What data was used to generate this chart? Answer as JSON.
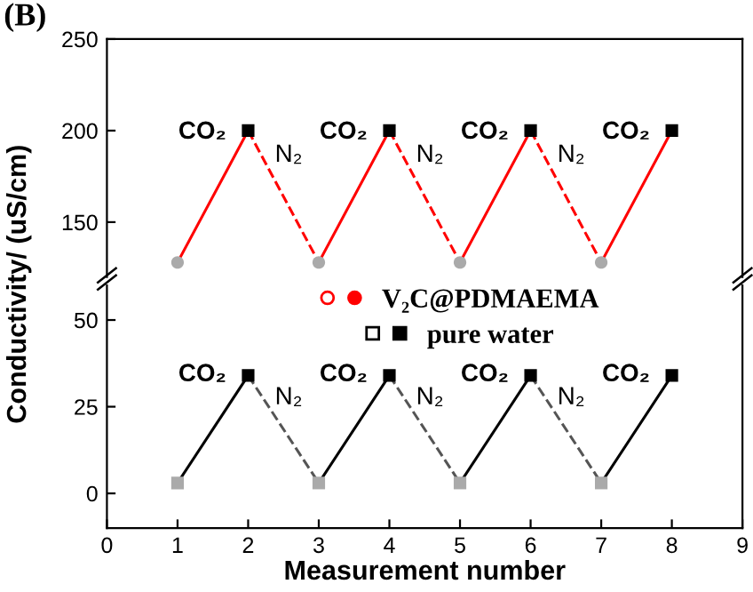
{
  "chart_data": [
    {
      "type": "line",
      "title": "(B)",
      "ylabel": "Conductivity/ (uS/cm)",
      "xlim": [
        0,
        9
      ],
      "ylim": [
        120,
        250
      ],
      "yticks": [
        150,
        200,
        250
      ],
      "tick_labels": "y",
      "legend": "bottom",
      "series": [
        {
          "name": "V₂C@PDMAEMA",
          "color": "#ff0000",
          "line_style": "solid",
          "x": [
            1,
            2
          ],
          "values": [
            128,
            200
          ]
        },
        {
          "color": "#ff0000",
          "line_style": "dashed",
          "x": [
            2,
            3
          ],
          "values": [
            200,
            128
          ]
        },
        {
          "color": "#ff0000",
          "line_style": "solid",
          "x": [
            3,
            4
          ],
          "values": [
            128,
            200
          ]
        },
        {
          "color": "#ff0000",
          "line_style": "dashed",
          "x": [
            4,
            5
          ],
          "values": [
            200,
            128
          ]
        },
        {
          "color": "#ff0000",
          "line_style": "solid",
          "x": [
            5,
            6
          ],
          "values": [
            128,
            200
          ]
        },
        {
          "color": "#ff0000",
          "line_style": "dashed",
          "x": [
            6,
            7
          ],
          "values": [
            200,
            128
          ]
        },
        {
          "color": "#ff0000",
          "line_style": "solid",
          "x": [
            7,
            8
          ],
          "values": [
            128,
            200
          ]
        },
        {
          "type": "scatter",
          "color": "#aaaaaa",
          "marker": "circle",
          "x": [
            1,
            3,
            5,
            7
          ],
          "values": [
            128,
            128,
            128,
            128
          ]
        },
        {
          "type": "scatter",
          "color": "#000000",
          "marker": "square",
          "x": [
            2,
            4,
            6,
            8
          ],
          "values": [
            200,
            200,
            200,
            200
          ]
        }
      ],
      "annotations": [
        {
          "text": "CO₂",
          "x": 1.9,
          "y": 192.8
        },
        {
          "text": "N₂",
          "x": 2.1,
          "y": 192.8
        },
        {
          "text": "CO₂",
          "x": 3.9,
          "y": 192.8
        },
        {
          "text": "N₂",
          "x": 4.1,
          "y": 192.8
        },
        {
          "text": "CO₂",
          "x": 5.9,
          "y": 192.8
        },
        {
          "text": "N₂",
          "x": 6.1,
          "y": 192.8
        },
        {
          "text": "CO₂",
          "x": 7.9,
          "y": 192.8
        }
      ]
    },
    {
      "type": "line",
      "xlabel": "Measurement number",
      "xlim": [
        0,
        9
      ],
      "xticks": [
        0,
        1,
        2,
        3,
        4,
        5,
        6,
        7,
        8,
        9
      ],
      "ylim": [
        -10,
        60
      ],
      "yticks": [
        0,
        25,
        50
      ],
      "legend": "top",
      "series": [
        {
          "name": "pure water",
          "color": "#000000",
          "line_style": "solid",
          "x": [
            1,
            2
          ],
          "values": [
            3,
            34
          ]
        },
        {
          "color": "#555555",
          "line_style": "dashed",
          "x": [
            2,
            3
          ],
          "values": [
            34,
            3
          ]
        },
        {
          "color": "#000000",
          "line_style": "solid",
          "x": [
            3,
            4
          ],
          "values": [
            3,
            34
          ]
        },
        {
          "color": "#555555",
          "line_style": "dashed",
          "x": [
            4,
            5
          ],
          "values": [
            34,
            3
          ]
        },
        {
          "color": "#000000",
          "line_style": "solid",
          "x": [
            5,
            6
          ],
          "values": [
            3,
            34
          ]
        },
        {
          "color": "#555555",
          "line_style": "dashed",
          "x": [
            6,
            7
          ],
          "values": [
            34,
            3
          ]
        },
        {
          "color": "#000000",
          "line_style": "solid",
          "x": [
            7,
            8
          ],
          "values": [
            3,
            34
          ]
        },
        {
          "type": "scatter",
          "color": "#aaaaaa",
          "marker": "square",
          "x": [
            1,
            3,
            5,
            7
          ],
          "values": [
            3,
            3,
            3,
            3
          ]
        },
        {
          "type": "scatter",
          "color": "#000000",
          "marker": "square",
          "x": [
            2,
            4,
            6,
            8
          ],
          "values": [
            34,
            34,
            34,
            34
          ]
        }
      ],
      "annotations": [
        {
          "text": "CO₂",
          "x": 1.9,
          "y": 30.9
        },
        {
          "text": "N₂",
          "x": 2.1,
          "y": 30.9
        },
        {
          "text": "CO₂",
          "x": 3.9,
          "y": 30.9
        },
        {
          "text": "N₂",
          "x": 4.1,
          "y": 30.9
        },
        {
          "text": "CO₂",
          "x": 5.9,
          "y": 30.9
        },
        {
          "text": "N₂",
          "x": 6.1,
          "y": 30.9
        },
        {
          "text": "CO₂",
          "x": 7.9,
          "y": 30.9
        }
      ]
    }
  ]
}
